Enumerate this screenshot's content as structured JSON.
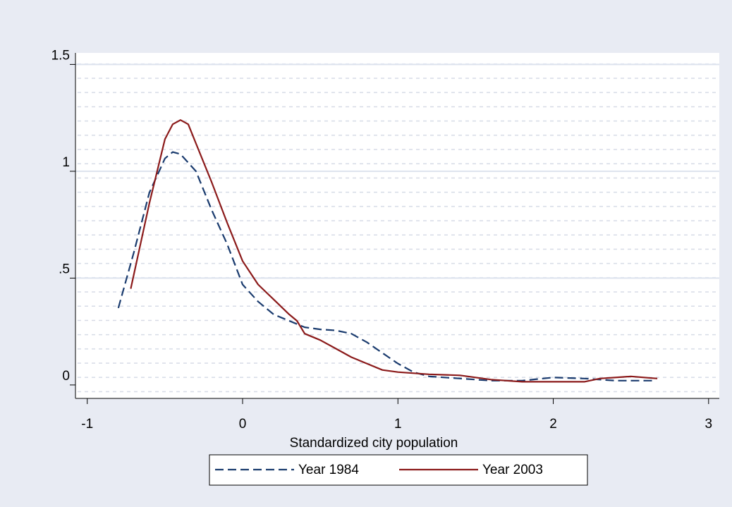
{
  "chart_data": {
    "type": "line",
    "x_label": "Standardized city population",
    "xlim": [
      -1.076,
      3.069
    ],
    "xticks": [
      -1,
      0,
      1,
      2,
      3
    ],
    "ylim": [
      -0.063,
      1.554
    ],
    "yticks": [
      0,
      {
        "value": 0.5,
        "label": ".5"
      },
      1,
      1.5
    ],
    "grid": true,
    "legend": "bottom",
    "series": [
      {
        "name": "Year 1984",
        "color": "#1a3b6e",
        "dash": true,
        "x": [
          -0.8,
          -0.7,
          -0.6,
          -0.5,
          -0.45,
          -0.4,
          -0.3,
          -0.2,
          -0.1,
          0,
          0.1,
          0.2,
          0.3,
          0.4,
          0.5,
          0.6,
          0.7,
          0.8,
          0.9,
          1.0,
          1.1,
          1.2,
          1.4,
          1.6,
          1.8,
          2.0,
          2.2,
          2.4,
          2.6,
          2.65
        ],
        "values": [
          0.36,
          0.62,
          0.9,
          1.06,
          1.09,
          1.08,
          1.0,
          0.82,
          0.66,
          0.47,
          0.39,
          0.33,
          0.3,
          0.27,
          0.26,
          0.255,
          0.24,
          0.2,
          0.15,
          0.1,
          0.06,
          0.04,
          0.03,
          0.02,
          0.02,
          0.035,
          0.03,
          0.02,
          0.02,
          0.02
        ]
      },
      {
        "name": "Year 2003",
        "color": "#8b1a1a",
        "dash": false,
        "x": [
          -0.72,
          -0.6,
          -0.5,
          -0.45,
          -0.4,
          -0.35,
          -0.3,
          -0.2,
          -0.1,
          0,
          0.1,
          0.2,
          0.3,
          0.35,
          0.4,
          0.5,
          0.6,
          0.7,
          0.8,
          0.9,
          1.0,
          1.2,
          1.4,
          1.6,
          1.8,
          2.0,
          2.2,
          2.3,
          2.5,
          2.67
        ],
        "values": [
          0.45,
          0.85,
          1.15,
          1.22,
          1.24,
          1.22,
          1.13,
          0.95,
          0.76,
          0.58,
          0.47,
          0.4,
          0.33,
          0.3,
          0.24,
          0.21,
          0.17,
          0.13,
          0.1,
          0.07,
          0.06,
          0.05,
          0.045,
          0.025,
          0.015,
          0.015,
          0.015,
          0.03,
          0.04,
          0.03
        ]
      }
    ]
  }
}
